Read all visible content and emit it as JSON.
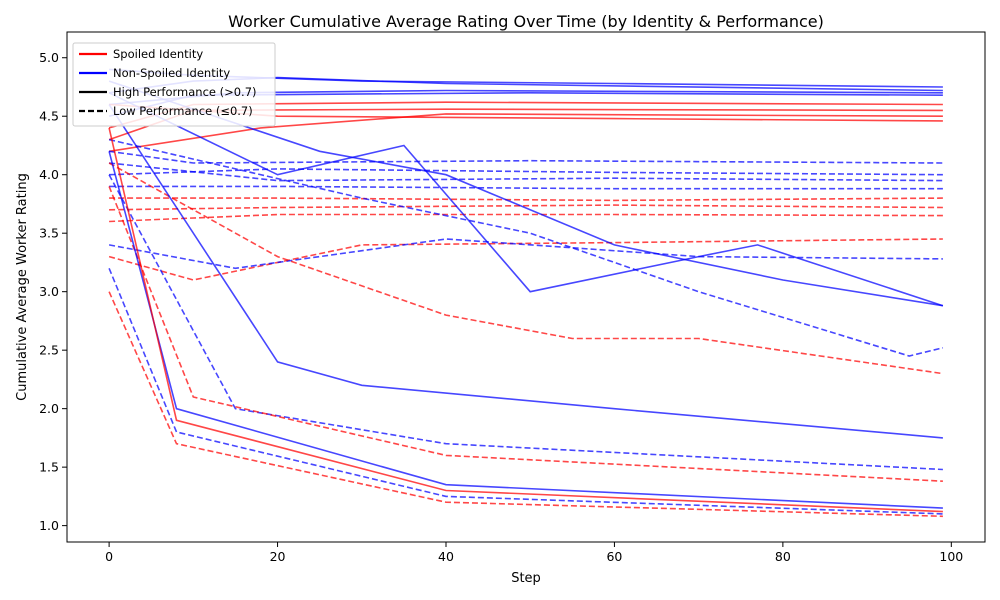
{
  "chart_data": {
    "type": "line",
    "title": "Worker Cumulative Average Rating Over Time (by Identity & Performance)",
    "xlabel": "Step",
    "ylabel": "Cumulative Average Worker Rating",
    "xlim": [
      -5,
      104
    ],
    "ylim": [
      0.86,
      5.22
    ],
    "xticks": [
      0,
      20,
      40,
      60,
      80,
      100
    ],
    "yticks": [
      1.0,
      1.5,
      2.0,
      2.5,
      3.0,
      3.5,
      4.0,
      4.5,
      5.0
    ],
    "grid": false,
    "legend_position": "top-left",
    "colors": {
      "spoiled": "#ff0000",
      "non_spoiled": "#0000ff"
    },
    "legend": [
      {
        "label": "Spoiled Identity",
        "color": "#ff0000",
        "style": "solid"
      },
      {
        "label": "Non-Spoiled Identity",
        "color": "#0000ff",
        "style": "solid"
      },
      {
        "label": "High Performance (>0.7)",
        "color": "#000000",
        "style": "solid"
      },
      {
        "label": "Low Performance (≤0.7)",
        "color": "#000000",
        "style": "dashed"
      }
    ],
    "series": [
      {
        "identity": "non_spoiled",
        "performance": "high",
        "values": [
          [
            0,
            4.9
          ],
          [
            10,
            4.85
          ],
          [
            30,
            4.8
          ],
          [
            60,
            4.78
          ],
          [
            99,
            4.75
          ]
        ]
      },
      {
        "identity": "non_spoiled",
        "performance": "high",
        "values": [
          [
            0,
            4.7
          ],
          [
            10,
            4.8
          ],
          [
            20,
            4.83
          ],
          [
            40,
            4.78
          ],
          [
            99,
            4.72
          ]
        ]
      },
      {
        "identity": "non_spoiled",
        "performance": "high",
        "values": [
          [
            0,
            4.6
          ],
          [
            15,
            4.7
          ],
          [
            40,
            4.72
          ],
          [
            99,
            4.7
          ]
        ]
      },
      {
        "identity": "non_spoiled",
        "performance": "high",
        "values": [
          [
            0,
            4.5
          ],
          [
            10,
            4.68
          ],
          [
            50,
            4.7
          ],
          [
            99,
            4.68
          ]
        ]
      },
      {
        "identity": "spoiled",
        "performance": "high",
        "values": [
          [
            0,
            4.4
          ],
          [
            10,
            4.6
          ],
          [
            40,
            4.62
          ],
          [
            99,
            4.6
          ]
        ]
      },
      {
        "identity": "spoiled",
        "performance": "high",
        "values": [
          [
            0,
            4.3
          ],
          [
            10,
            4.55
          ],
          [
            40,
            4.56
          ],
          [
            99,
            4.55
          ]
        ]
      },
      {
        "identity": "spoiled",
        "performance": "high",
        "values": [
          [
            0,
            4.2
          ],
          [
            18,
            4.4
          ],
          [
            40,
            4.52
          ],
          [
            99,
            4.5
          ]
        ]
      },
      {
        "identity": "spoiled",
        "performance": "high",
        "values": [
          [
            0,
            4.6
          ],
          [
            20,
            4.5
          ],
          [
            60,
            4.48
          ],
          [
            99,
            4.46
          ]
        ]
      },
      {
        "identity": "non_spoiled",
        "performance": "low",
        "values": [
          [
            0,
            4.2
          ],
          [
            10,
            4.1
          ],
          [
            50,
            4.12
          ],
          [
            99,
            4.1
          ]
        ]
      },
      {
        "identity": "non_spoiled",
        "performance": "low",
        "values": [
          [
            0,
            4.0
          ],
          [
            20,
            4.05
          ],
          [
            60,
            4.02
          ],
          [
            99,
            4.0
          ]
        ]
      },
      {
        "identity": "non_spoiled",
        "performance": "low",
        "values": [
          [
            0,
            4.1
          ],
          [
            20,
            3.95
          ],
          [
            60,
            3.97
          ],
          [
            99,
            3.95
          ]
        ]
      },
      {
        "identity": "non_spoiled",
        "performance": "low",
        "values": [
          [
            0,
            3.9
          ],
          [
            20,
            3.9
          ],
          [
            60,
            3.88
          ],
          [
            99,
            3.88
          ]
        ]
      },
      {
        "identity": "spoiled",
        "performance": "low",
        "values": [
          [
            0,
            3.8
          ],
          [
            20,
            3.8
          ],
          [
            60,
            3.78
          ],
          [
            99,
            3.8
          ]
        ]
      },
      {
        "identity": "spoiled",
        "performance": "low",
        "values": [
          [
            0,
            3.7
          ],
          [
            20,
            3.72
          ],
          [
            60,
            3.74
          ],
          [
            99,
            3.72
          ]
        ]
      },
      {
        "identity": "spoiled",
        "performance": "low",
        "values": [
          [
            0,
            3.6
          ],
          [
            20,
            3.66
          ],
          [
            60,
            3.66
          ],
          [
            99,
            3.65
          ]
        ]
      },
      {
        "identity": "spoiled",
        "performance": "low",
        "values": [
          [
            0,
            3.3
          ],
          [
            10,
            3.1
          ],
          [
            30,
            3.4
          ],
          [
            60,
            3.42
          ],
          [
            99,
            3.45
          ]
        ]
      },
      {
        "identity": "non_spoiled",
        "performance": "low",
        "values": [
          [
            0,
            3.4
          ],
          [
            15,
            3.2
          ],
          [
            40,
            3.45
          ],
          [
            70,
            3.3
          ],
          [
            99,
            3.28
          ]
        ]
      },
      {
        "identity": "non_spoiled",
        "performance": "high",
        "values": [
          [
            0,
            4.8
          ],
          [
            25,
            4.2
          ],
          [
            40,
            4.0
          ],
          [
            60,
            3.4
          ],
          [
            80,
            3.1
          ],
          [
            99,
            2.88
          ]
        ]
      },
      {
        "identity": "non_spoiled",
        "performance": "high",
        "values": [
          [
            0,
            4.7
          ],
          [
            20,
            4.0
          ],
          [
            35,
            4.25
          ],
          [
            50,
            3.0
          ],
          [
            70,
            3.3
          ],
          [
            77,
            3.4
          ],
          [
            99,
            2.88
          ]
        ]
      },
      {
        "identity": "non_spoiled",
        "performance": "low",
        "values": [
          [
            0,
            4.3
          ],
          [
            30,
            3.8
          ],
          [
            50,
            3.5
          ],
          [
            70,
            3.0
          ],
          [
            95,
            2.45
          ],
          [
            99,
            2.52
          ]
        ]
      },
      {
        "identity": "spoiled",
        "performance": "low",
        "values": [
          [
            0,
            4.1
          ],
          [
            20,
            3.3
          ],
          [
            40,
            2.8
          ],
          [
            55,
            2.6
          ],
          [
            70,
            2.6
          ],
          [
            99,
            2.3
          ]
        ]
      },
      {
        "identity": "non_spoiled",
        "performance": "high",
        "values": [
          [
            0,
            4.6
          ],
          [
            20,
            2.4
          ],
          [
            30,
            2.2
          ],
          [
            60,
            2.0
          ],
          [
            99,
            1.75
          ]
        ]
      },
      {
        "identity": "non_spoiled",
        "performance": "low",
        "values": [
          [
            0,
            4.0
          ],
          [
            15,
            2.0
          ],
          [
            40,
            1.7
          ],
          [
            99,
            1.48
          ]
        ]
      },
      {
        "identity": "spoiled",
        "performance": "low",
        "values": [
          [
            0,
            3.9
          ],
          [
            10,
            2.1
          ],
          [
            40,
            1.6
          ],
          [
            99,
            1.38
          ]
        ]
      },
      {
        "identity": "non_spoiled",
        "performance": "high",
        "values": [
          [
            0,
            4.2
          ],
          [
            8,
            2.0
          ],
          [
            40,
            1.35
          ],
          [
            99,
            1.15
          ]
        ]
      },
      {
        "identity": "spoiled",
        "performance": "high",
        "values": [
          [
            0,
            4.4
          ],
          [
            8,
            1.9
          ],
          [
            40,
            1.3
          ],
          [
            99,
            1.12
          ]
        ]
      },
      {
        "identity": "spoiled",
        "performance": "low",
        "values": [
          [
            0,
            3.0
          ],
          [
            8,
            1.7
          ],
          [
            40,
            1.2
          ],
          [
            99,
            1.08
          ]
        ]
      },
      {
        "identity": "non_spoiled",
        "performance": "low",
        "values": [
          [
            0,
            3.2
          ],
          [
            8,
            1.8
          ],
          [
            40,
            1.25
          ],
          [
            99,
            1.1
          ]
        ]
      }
    ]
  }
}
